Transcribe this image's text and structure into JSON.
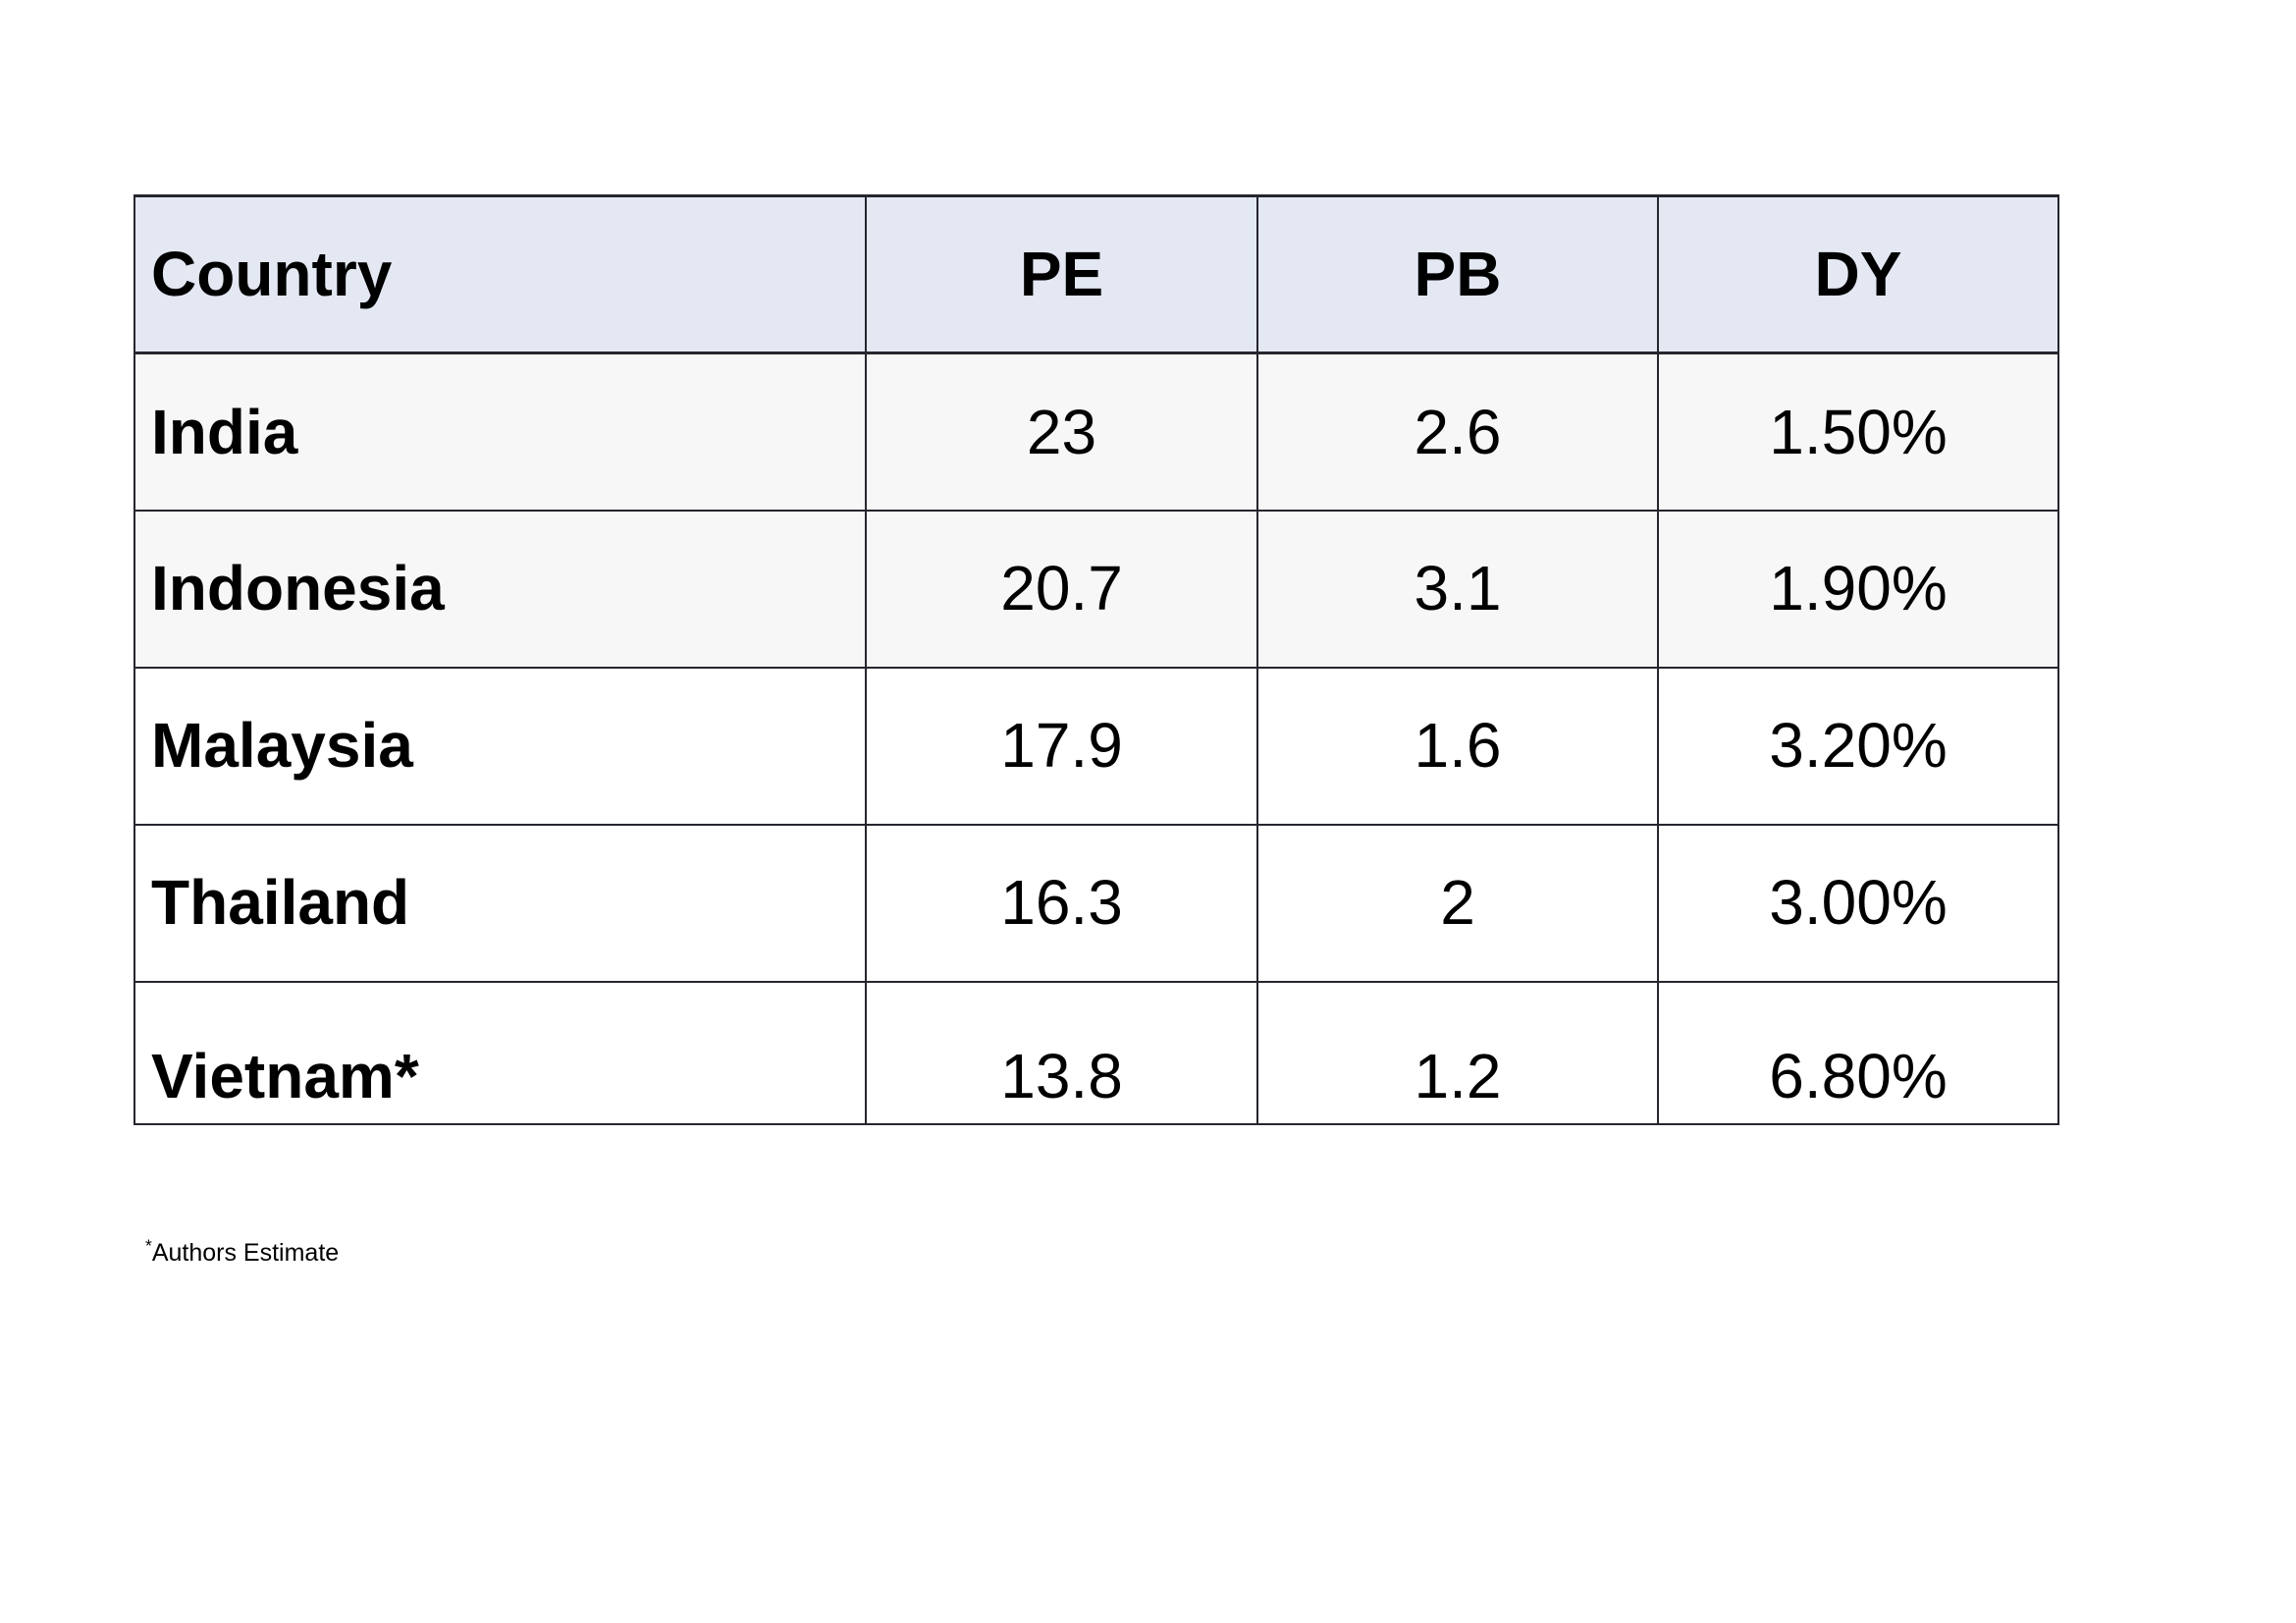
{
  "colors": {
    "header_bg": "#e3e8f3",
    "band_row_bg": "#f7f7f7",
    "row_bg": "#ffffff",
    "border": "#26262e",
    "text": "#000000",
    "page_bg": "#ffffff"
  },
  "table": {
    "columns": {
      "country": "Country",
      "pe": "PE",
      "pb": "PB",
      "dy": "DY"
    },
    "rows": [
      {
        "country": "India",
        "pe": "23",
        "pb": "2.6",
        "dy": "1.50%"
      },
      {
        "country": "Indonesia",
        "pe": "20.7",
        "pb": "3.1",
        "dy": "1.90%"
      },
      {
        "country": "Malaysia",
        "pe": "17.9",
        "pb": "1.6",
        "dy": "3.20%"
      },
      {
        "country": "Thailand",
        "pe": "16.3",
        "pb": "2",
        "dy": "3.00%"
      },
      {
        "country": "Vietnam*",
        "pe": "13.8",
        "pb": "1.2",
        "dy": "6.80%"
      }
    ]
  },
  "footnote": {
    "marker": "*",
    "text": "Authors Estimate"
  },
  "chart_data": {
    "type": "table",
    "title": "",
    "columns": [
      "Country",
      "PE",
      "PB",
      "DY"
    ],
    "rows": [
      [
        "India",
        23,
        2.6,
        "1.50%"
      ],
      [
        "Indonesia",
        20.7,
        3.1,
        "1.90%"
      ],
      [
        "Malaysia",
        17.9,
        1.6,
        "3.20%"
      ],
      [
        "Thailand",
        16.3,
        2,
        "3.00%"
      ],
      [
        "Vietnam*",
        13.8,
        1.2,
        "6.80%"
      ]
    ],
    "footnote": "*Authors Estimate"
  }
}
